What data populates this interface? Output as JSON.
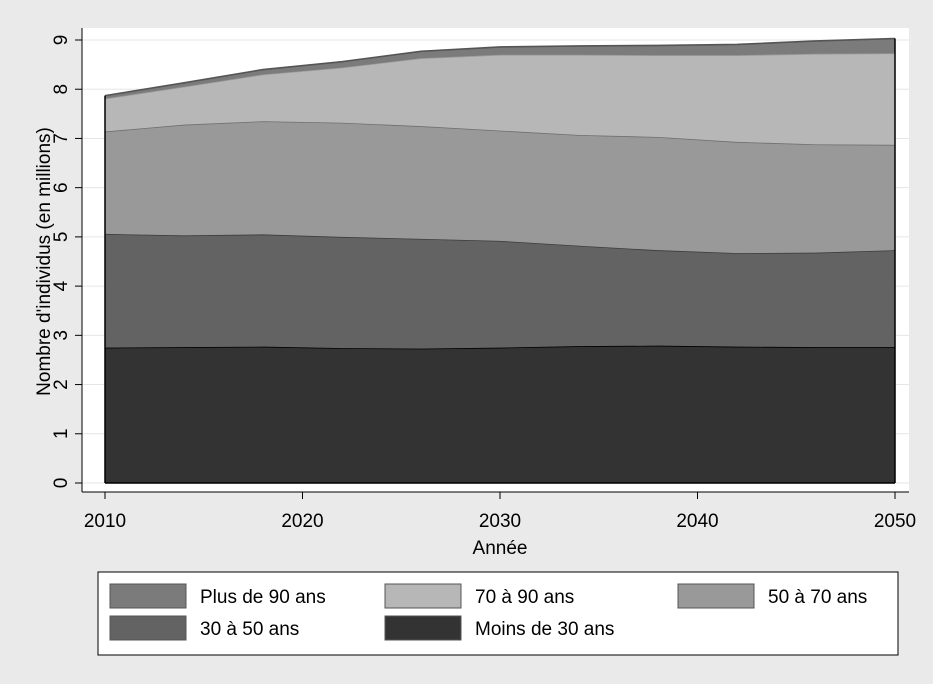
{
  "chart_data": {
    "type": "area",
    "stacked": true,
    "xlabel": "Année",
    "ylabel": "Nombre d'individus (en millions)",
    "xlim": [
      2010,
      2050
    ],
    "ylim": [
      0,
      9
    ],
    "xticks": [
      2010,
      2020,
      2030,
      2040,
      2050
    ],
    "yticks": [
      0,
      1,
      2,
      3,
      4,
      5,
      6,
      7,
      8,
      9
    ],
    "grid": "horizontal",
    "legend_position": "bottom",
    "x": [
      2010,
      2014,
      2018,
      2022,
      2026,
      2030,
      2034,
      2038,
      2042,
      2046,
      2050
    ],
    "series": [
      {
        "name": "Moins de 30 ans",
        "color": "#333333",
        "values": [
          2.75,
          2.76,
          2.77,
          2.74,
          2.73,
          2.75,
          2.78,
          2.79,
          2.77,
          2.76,
          2.76
        ]
      },
      {
        "name": "30 à 50 ans",
        "color": "#636363",
        "values": [
          2.31,
          2.27,
          2.28,
          2.26,
          2.23,
          2.17,
          2.04,
          1.94,
          1.9,
          1.92,
          1.97
        ]
      },
      {
        "name": "50 à 70 ans",
        "color": "#999999",
        "values": [
          2.08,
          2.25,
          2.3,
          2.32,
          2.29,
          2.24,
          2.25,
          2.3,
          2.26,
          2.2,
          2.14
        ]
      },
      {
        "name": "70 à 90 ans",
        "color": "#b7b7b7",
        "values": [
          0.67,
          0.77,
          0.95,
          1.12,
          1.38,
          1.54,
          1.63,
          1.66,
          1.76,
          1.84,
          1.86
        ]
      },
      {
        "name": "Plus de 90 ans",
        "color": "#7b7b7b",
        "values": [
          0.06,
          0.08,
          0.1,
          0.12,
          0.14,
          0.16,
          0.18,
          0.2,
          0.22,
          0.26,
          0.3
        ]
      }
    ],
    "legend_order": [
      "Plus de 90 ans",
      "70 à 90 ans",
      "50 à 70 ans",
      "30 à 50 ans",
      "Moins de 30 ans"
    ]
  }
}
